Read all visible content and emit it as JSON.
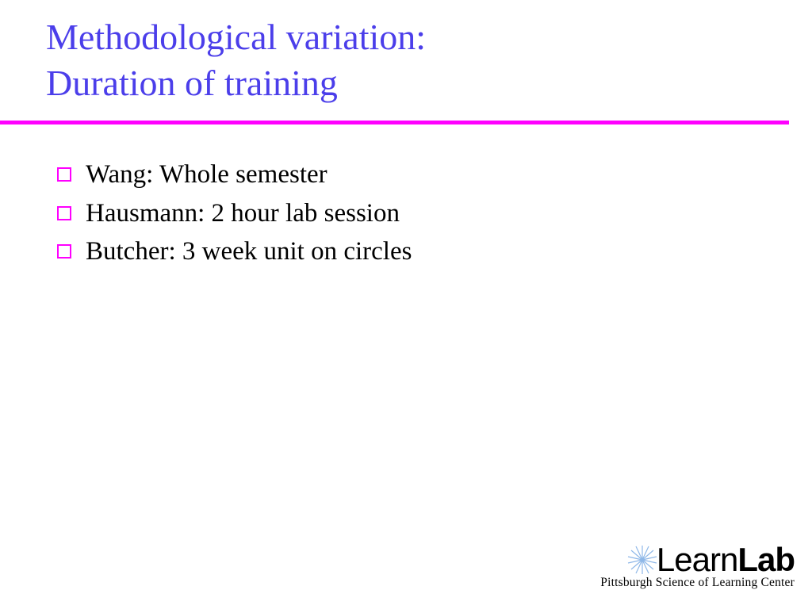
{
  "title": {
    "line1": "Methodological variation:",
    "line2": "Duration of training",
    "color": "#4b3eea",
    "fontsize": 46
  },
  "divider": {
    "color": "#ff00ff",
    "thickness": 5
  },
  "bullets": {
    "marker_color": "#ff00ff",
    "text_color": "#000000",
    "fontsize": 33,
    "items": [
      "Wang:  Whole semester",
      "Hausmann: 2 hour lab session",
      "Butcher:  3 week unit on circles"
    ]
  },
  "logo": {
    "burst_color": "#8fb8e8",
    "text_part1": "Learn",
    "text_part2": "Lab",
    "subtitle": "Pittsburgh Science of Learning Center",
    "text_color": "#000000"
  },
  "background_color": "#ffffff"
}
